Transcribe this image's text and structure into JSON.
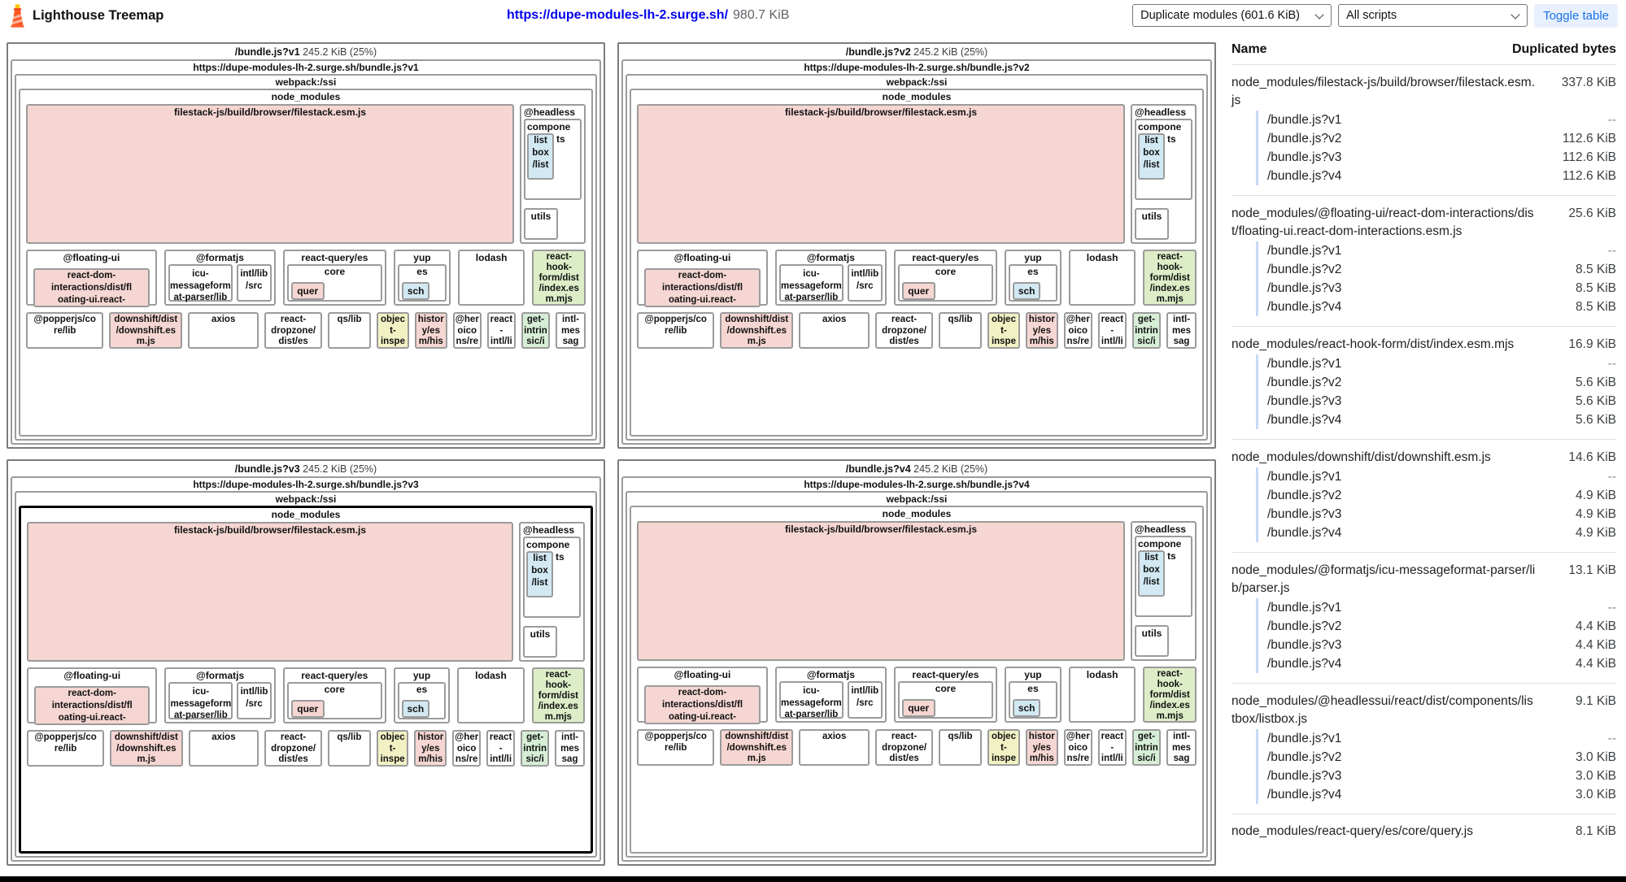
{
  "colors": {
    "pink": "#f5d6d2",
    "blue": "#d2e9f3",
    "green": "#ddedc7",
    "mint": "#d6eed6",
    "yellow": "#f1f1c4",
    "link_blue": "#0000ee",
    "accent_blue": "#1a73e8",
    "btn_bg": "#e8f0fe"
  },
  "header": {
    "app_title": "Lighthouse Treemap",
    "url": "https://dupe-modules-lh-2.surge.sh/",
    "total_size": "980.7 KiB",
    "view_mode_selected": "Duplicate modules (601.6 KiB)",
    "script_selected": "All scripts",
    "toggle_table": "Toggle table"
  },
  "panels": [
    {
      "name": "/bundle.js?v1",
      "size": "245.2 KiB (25%)",
      "url": "https://dupe-modules-lh-2.surge.sh/bundle.js?v1",
      "webpack": "webpack:/ssi",
      "node_modules": "node_modules",
      "highlighted": false
    },
    {
      "name": "/bundle.js?v2",
      "size": "245.2 KiB (25%)",
      "url": "https://dupe-modules-lh-2.surge.sh/bundle.js?v2",
      "webpack": "webpack:/ssi",
      "node_modules": "node_modules",
      "highlighted": false
    },
    {
      "name": "/bundle.js?v3",
      "size": "245.2 KiB (25%)",
      "url": "https://dupe-modules-lh-2.surge.sh/bundle.js?v3",
      "webpack": "webpack:/ssi",
      "node_modules": "node_modules",
      "highlighted": true
    },
    {
      "name": "/bundle.js?v4",
      "size": "245.2 KiB (25%)",
      "url": "https://dupe-modules-lh-2.surge.sh/bundle.js?v4",
      "webpack": "webpack:/ssi",
      "node_modules": "node_modules",
      "highlighted": false
    }
  ],
  "module_boxes": {
    "filestack": "filestack-js/build/browser/filestack.esm.js",
    "headlessui": {
      "title": "@headless",
      "components_line1": "compone",
      "components_line2": "ts",
      "listbox": "list\nbox\n/list",
      "utils": "utils"
    },
    "floating_ui": {
      "title": "@floating-ui",
      "chip": "react-dom-\ninteractions/dist/fl\noating-ui.react-"
    },
    "formatjs": {
      "title": "@formatjs",
      "icu": "icu-\nmessageform\nat-parser/lib",
      "intl": "intl/lib\n/src"
    },
    "react_query": {
      "title": "react-query/es",
      "core": "core",
      "chip": "quer"
    },
    "yup": {
      "title": "yup",
      "es": "es",
      "chip": "sch"
    },
    "lodash": {
      "title": "lodash"
    },
    "react_hook_form": "react-\nhook-\nform/dist\n/index.es\nm.mjs",
    "row3": [
      {
        "text": "@popperjs/co\nre/lib",
        "color": "white",
        "w": 97
      },
      {
        "text": "downshift/dist\n/downshift.es\nm.js",
        "color": "pink",
        "w": 91
      },
      {
        "text": "axios",
        "color": "white",
        "w": 88
      },
      {
        "text": "react-\ndropzone/\ndist/es",
        "color": "white",
        "w": 71
      },
      {
        "text": "qs/lib",
        "color": "white",
        "w": 52
      },
      {
        "text": "objec\nt-\ninspe",
        "color": "yellow",
        "w": 38
      },
      {
        "text": "histor\ny/es\nm/his",
        "color": "pink",
        "w": 38
      },
      {
        "text": "@her\noico\nns/re",
        "color": "white",
        "w": 33
      },
      {
        "text": "react\n-\nintl/li",
        "color": "white",
        "w": 33
      },
      {
        "text": "get-\nintrin\nsic/i",
        "color": "mint",
        "w": 33
      },
      {
        "text": "intl-\nmes\nsag",
        "color": "white",
        "w": 35
      }
    ]
  },
  "table": {
    "name_header": "Name",
    "bytes_header": "Duplicated bytes",
    "groups": [
      {
        "name": "node_modules/filestack-js/build/browser/filestack.esm.js",
        "value": "337.8 KiB",
        "partial": false,
        "rows": [
          [
            "/bundle.js?v1",
            "--"
          ],
          [
            "/bundle.js?v2",
            "112.6 KiB"
          ],
          [
            "/bundle.js?v3",
            "112.6 KiB"
          ],
          [
            "/bundle.js?v4",
            "112.6 KiB"
          ]
        ]
      },
      {
        "name": "node_modules/@floating-ui/react-dom-interactions/dist/floating-ui.react-dom-interactions.esm.js",
        "value": "25.6 KiB",
        "partial": false,
        "rows": [
          [
            "/bundle.js?v1",
            "--"
          ],
          [
            "/bundle.js?v2",
            "8.5 KiB"
          ],
          [
            "/bundle.js?v3",
            "8.5 KiB"
          ],
          [
            "/bundle.js?v4",
            "8.5 KiB"
          ]
        ]
      },
      {
        "name": "node_modules/react-hook-form/dist/index.esm.mjs",
        "value": "16.9 KiB",
        "partial": false,
        "rows": [
          [
            "/bundle.js?v1",
            "--"
          ],
          [
            "/bundle.js?v2",
            "5.6 KiB"
          ],
          [
            "/bundle.js?v3",
            "5.6 KiB"
          ],
          [
            "/bundle.js?v4",
            "5.6 KiB"
          ]
        ]
      },
      {
        "name": "node_modules/downshift/dist/downshift.esm.js",
        "value": "14.6 KiB",
        "partial": false,
        "rows": [
          [
            "/bundle.js?v1",
            "--"
          ],
          [
            "/bundle.js?v2",
            "4.9 KiB"
          ],
          [
            "/bundle.js?v3",
            "4.9 KiB"
          ],
          [
            "/bundle.js?v4",
            "4.9 KiB"
          ]
        ]
      },
      {
        "name": "node_modules/@formatjs/icu-messageformat-parser/lib/parser.js",
        "value": "13.1 KiB",
        "partial": false,
        "rows": [
          [
            "/bundle.js?v1",
            "--"
          ],
          [
            "/bundle.js?v2",
            "4.4 KiB"
          ],
          [
            "/bundle.js?v3",
            "4.4 KiB"
          ],
          [
            "/bundle.js?v4",
            "4.4 KiB"
          ]
        ]
      },
      {
        "name": "node_modules/@headlessui/react/dist/components/listbox/listbox.js",
        "value": "9.1 KiB",
        "partial": false,
        "rows": [
          [
            "/bundle.js?v1",
            "--"
          ],
          [
            "/bundle.js?v2",
            "3.0 KiB"
          ],
          [
            "/bundle.js?v3",
            "3.0 KiB"
          ],
          [
            "/bundle.js?v4",
            "3.0 KiB"
          ]
        ]
      },
      {
        "name": "node_modules/react-query/es/core/query.js",
        "value": "8.1 KiB",
        "partial": true,
        "rows": []
      }
    ]
  }
}
